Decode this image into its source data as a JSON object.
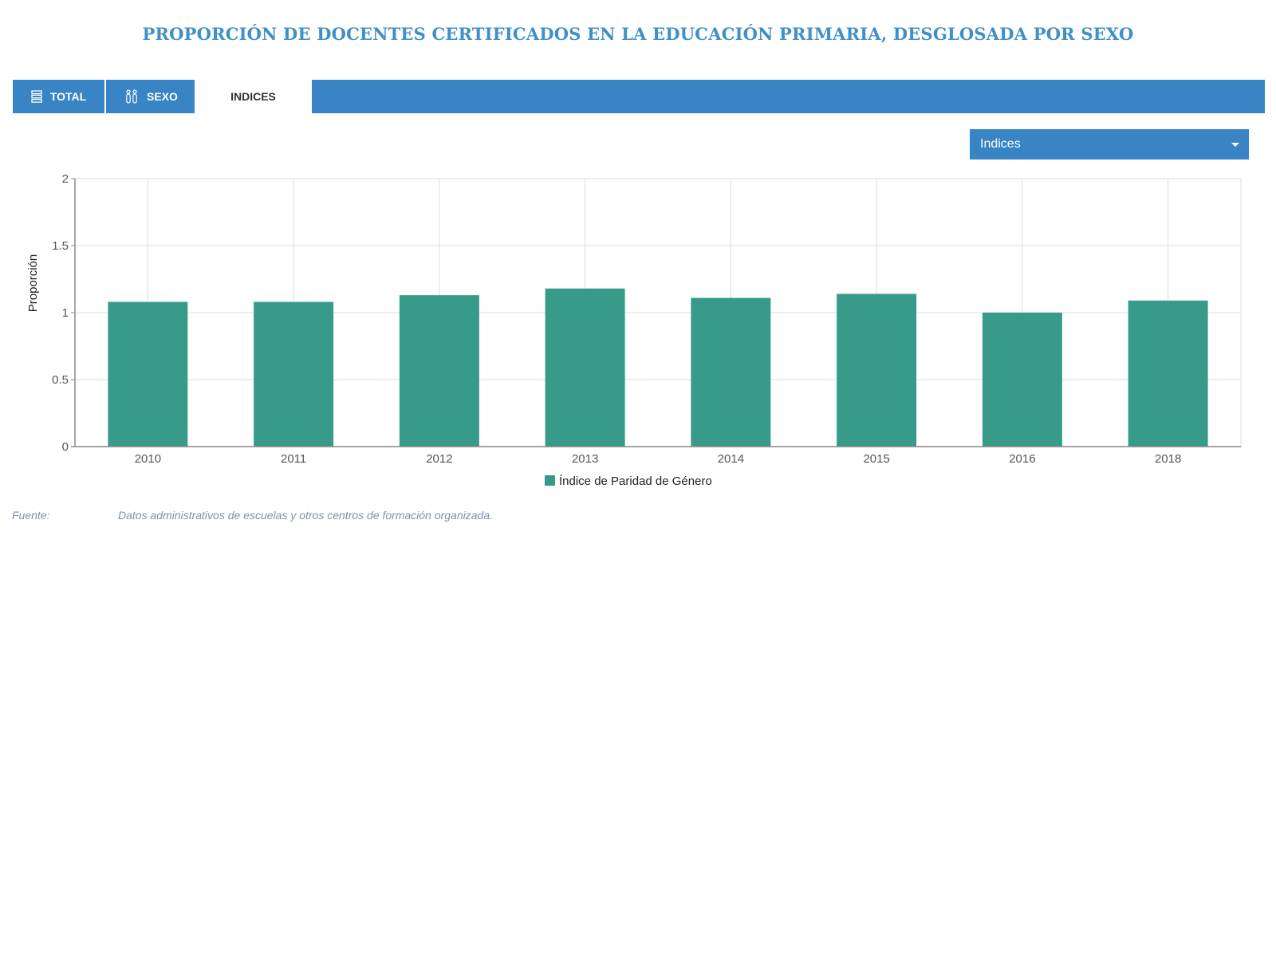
{
  "title": "PROPORCIÓN DE DOCENTES CERTIFICADOS EN LA EDUCACIÓN PRIMARIA, DESGLOSADA POR SEXO",
  "tabs": {
    "total": "TOTAL",
    "sexo": "SEXO",
    "indices": "INDICES"
  },
  "dropdown": {
    "selected": "Indices"
  },
  "colors": {
    "accent": "#3884c4",
    "title": "#3f8fc8",
    "bar": "#389b8a"
  },
  "chart_data": {
    "type": "bar",
    "categories": [
      "2010",
      "2011",
      "2012",
      "2013",
      "2014",
      "2015",
      "2016",
      "2018"
    ],
    "series": [
      {
        "name": "Índice de Paridad de Género",
        "values": [
          1.08,
          1.08,
          1.13,
          1.18,
          1.11,
          1.14,
          1.0,
          1.09
        ]
      }
    ],
    "ylabel": "Proporción",
    "xlabel": "",
    "ylim": [
      0,
      2
    ],
    "yticks": [
      "0",
      "0.5",
      "1",
      "1.5",
      "2"
    ],
    "grid": true,
    "legend": "bottom"
  },
  "source": {
    "label": "Fuente:",
    "text": "Datos administrativos de escuelas y otros centros de formación organizada."
  }
}
